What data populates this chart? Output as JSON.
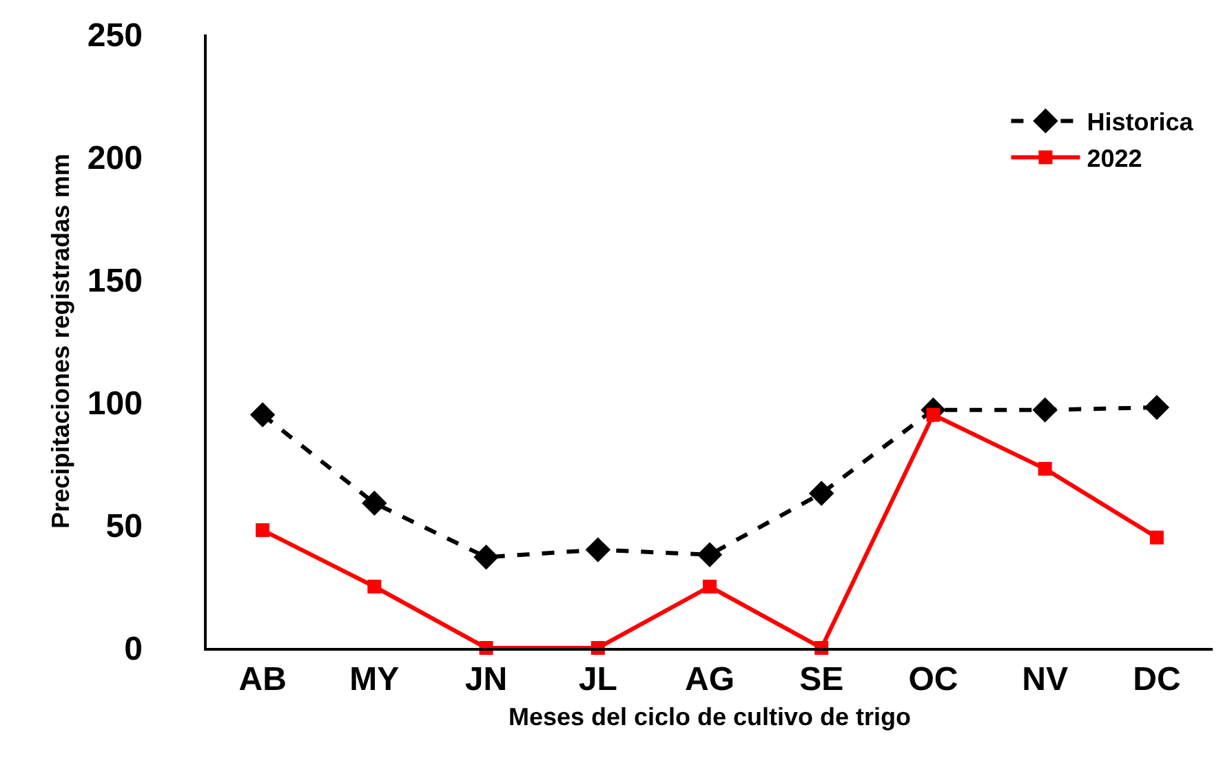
{
  "chart_data": {
    "type": "line",
    "xlabel": "Meses del ciclo de cultivo de trigo",
    "ylabel": "Precipitaciones registradas mm",
    "categories": [
      "AB",
      "MY",
      "JN",
      "JL",
      "AG",
      "SE",
      "OC",
      "NV",
      "DC"
    ],
    "series": [
      {
        "name": "Historica",
        "color": "#000000",
        "marker": "diamond",
        "line_style": "dashed",
        "values": [
          95,
          59,
          37,
          40,
          38,
          63,
          97,
          97,
          98
        ]
      },
      {
        "name": "2022",
        "color": "#ff0000",
        "marker": "square",
        "line_style": "solid",
        "values": [
          48,
          25,
          0,
          0,
          25,
          0,
          95,
          73,
          45
        ]
      }
    ],
    "ylim": [
      0,
      250
    ],
    "yticks": [
      0,
      50,
      100,
      150,
      200,
      250
    ],
    "legend": "top right"
  }
}
